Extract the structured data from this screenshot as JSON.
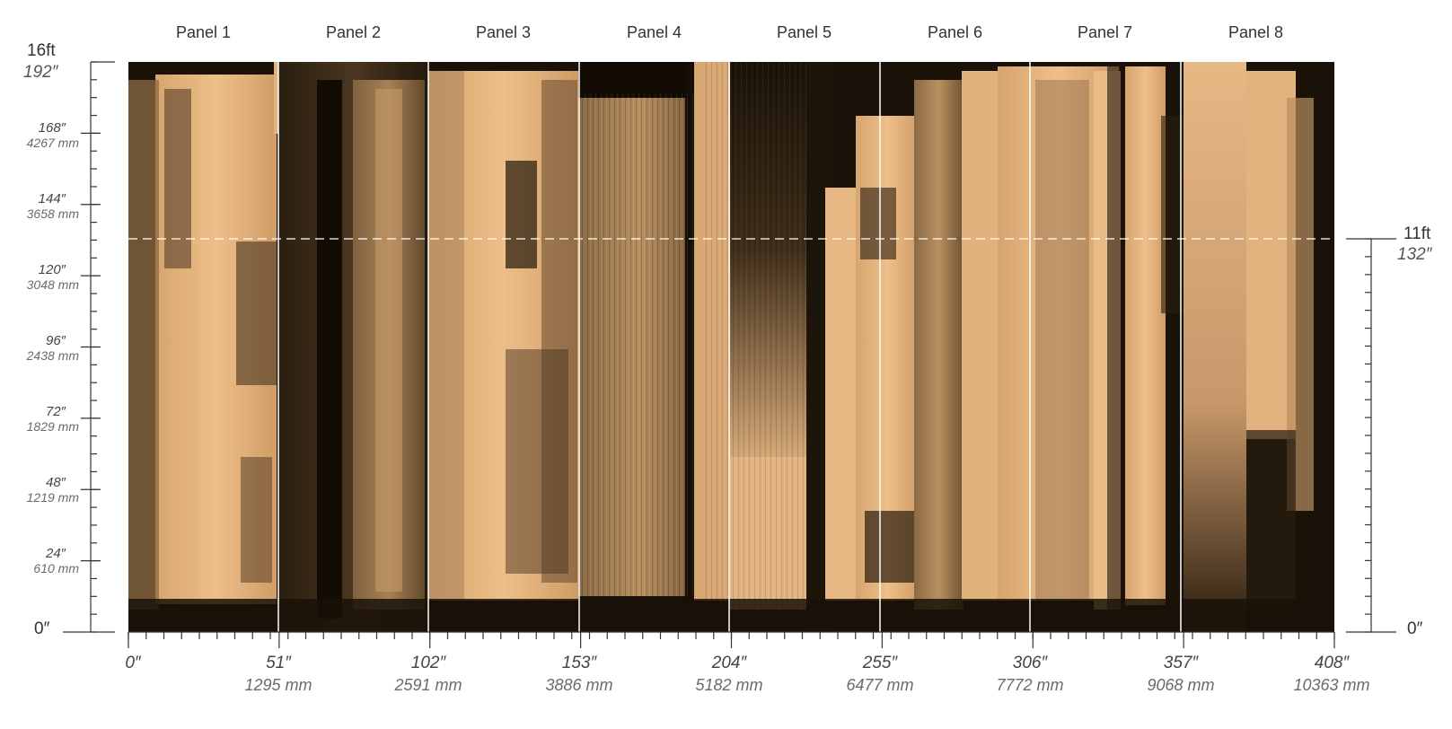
{
  "panels": [
    "Panel 1",
    "Panel 2",
    "Panel 3",
    "Panel 4",
    "Panel 5",
    "Panel 6",
    "Panel 7",
    "Panel 8"
  ],
  "x_axis": {
    "ticks_in": [
      "0″",
      "51″",
      "102″",
      "153″",
      "204″",
      "255″",
      "306″",
      "357″",
      "408″"
    ],
    "ticks_mm": [
      "",
      "1295 mm",
      "2591 mm",
      "3886 mm",
      "5182 mm",
      "6477 mm",
      "7772 mm",
      "9068 mm",
      "10363 mm"
    ]
  },
  "y_axis_left": {
    "top_ft": "16ft",
    "top_in": "192″",
    "ticks": [
      {
        "in": "168″",
        "mm": "4267 mm"
      },
      {
        "in": "144″",
        "mm": "3658 mm"
      },
      {
        "in": "120″",
        "mm": "3048 mm"
      },
      {
        "in": "96″",
        "mm": "2438 mm"
      },
      {
        "in": "72″",
        "mm": "1829 mm"
      },
      {
        "in": "48″",
        "mm": "1219 mm"
      },
      {
        "in": "24″",
        "mm": "610 mm"
      }
    ],
    "zero": "0″"
  },
  "y_axis_right": {
    "top_ft": "11ft",
    "top_in": "132″",
    "zero": "0″"
  },
  "colors": {
    "paint_light": "#e8b985",
    "paint_dark": "#1a1208",
    "axis": "#333333",
    "divider": "#ffffff"
  }
}
